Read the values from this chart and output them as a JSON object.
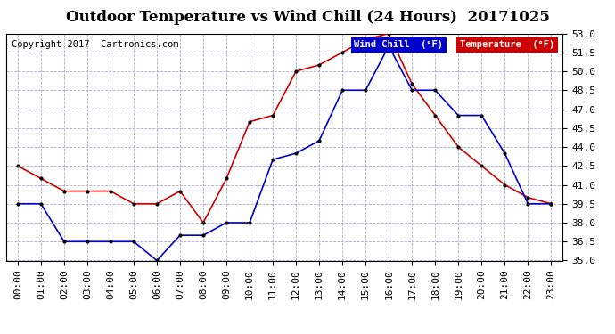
{
  "title": "Outdoor Temperature vs Wind Chill (24 Hours)  20171025",
  "copyright": "Copyright 2017  Cartronics.com",
  "background_color": "#ffffff",
  "grid_color": "#aaaacc",
  "ylim": [
    35.0,
    53.0
  ],
  "yticks": [
    35.0,
    36.5,
    38.0,
    39.5,
    41.0,
    42.5,
    44.0,
    45.5,
    47.0,
    48.5,
    50.0,
    51.5,
    53.0
  ],
  "hours": [
    0,
    1,
    2,
    3,
    4,
    5,
    6,
    7,
    8,
    9,
    10,
    11,
    12,
    13,
    14,
    15,
    16,
    17,
    18,
    19,
    20,
    21,
    22,
    23
  ],
  "temperature": [
    42.5,
    41.5,
    40.5,
    40.5,
    40.5,
    39.5,
    39.5,
    40.5,
    38.0,
    41.5,
    46.0,
    46.5,
    50.0,
    50.5,
    51.5,
    52.5,
    53.0,
    49.0,
    46.5,
    44.0,
    42.5,
    41.0,
    40.0,
    39.5
  ],
  "wind_chill": [
    39.5,
    39.5,
    36.5,
    36.5,
    36.5,
    36.5,
    35.0,
    37.0,
    37.0,
    38.0,
    38.0,
    43.0,
    43.5,
    44.5,
    48.5,
    48.5,
    52.0,
    48.5,
    48.5,
    46.5,
    46.5,
    43.5,
    39.5,
    39.5
  ],
  "temp_color": "#cc0000",
  "wind_color": "#0000cc",
  "legend_wind_bg": "#0000cc",
  "legend_temp_bg": "#cc0000",
  "legend_text_color": "#ffffff",
  "title_fontsize": 12,
  "tick_fontsize": 8,
  "copyright_fontsize": 7.5
}
